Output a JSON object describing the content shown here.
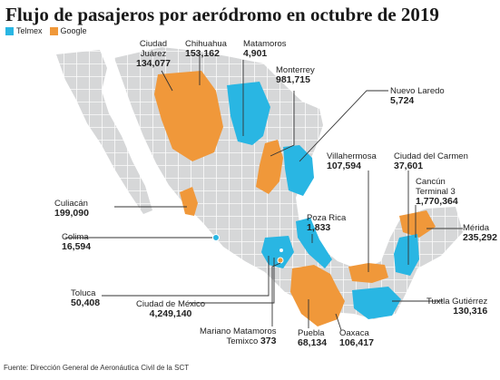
{
  "title": "Flujo de pasajeros por aeródromo en octubre de 2019",
  "legend": [
    {
      "label": "Telmex",
      "color": "#29b6e3"
    },
    {
      "label": "Google",
      "color": "#f0983a"
    }
  ],
  "colors": {
    "land": "#d6d7d8",
    "land_border": "#ffffff",
    "telmex": "#29b6e3",
    "google": "#f0983a",
    "leader": "#333333"
  },
  "airports": [
    {
      "name": "Ciudad\nJuárez",
      "value": "134,077",
      "provider": "google"
    },
    {
      "name": "Chihuahua",
      "value": "153,162",
      "provider": "google"
    },
    {
      "name": "Matamoros",
      "value": "4,901",
      "provider": "telmex"
    },
    {
      "name": "Monterrey",
      "value": "981,715",
      "provider": "google"
    },
    {
      "name": "Nuevo Laredo",
      "value": "5,724",
      "provider": "telmex"
    },
    {
      "name": "Culiacán",
      "value": "199,090",
      "provider": "google"
    },
    {
      "name": "Villahermosa",
      "value": "107,594",
      "provider": "google"
    },
    {
      "name": "Ciudad del Carmen",
      "value": "37,601",
      "provider": "telmex"
    },
    {
      "name": "Cancún\nTerminal 3",
      "value": "1,770,364",
      "provider": "telmex"
    },
    {
      "name": "Mérida",
      "value": "235,292",
      "provider": "google"
    },
    {
      "name": "Colima",
      "value": "16,594",
      "provider": "telmex"
    },
    {
      "name": "Poza Rica",
      "value": "1,833",
      "provider": "telmex"
    },
    {
      "name": "Toluca",
      "value": "50,408",
      "provider": "telmex"
    },
    {
      "name": "Ciudad de México",
      "value": "4,249,140",
      "provider": "telmex"
    },
    {
      "name": "Tuxtla Gutiérrez",
      "value": "130,316",
      "provider": "telmex"
    },
    {
      "name": "Mariano Matamoros\nTemixco",
      "value": "373",
      "provider": "google"
    },
    {
      "name": "Puebla",
      "value": "68,134",
      "provider": "google"
    },
    {
      "name": "Oaxaca",
      "value": "106,417",
      "provider": "telmex"
    }
  ],
  "source": "Fuente: Dirección General de Aeronáutica Civil de la SCT"
}
